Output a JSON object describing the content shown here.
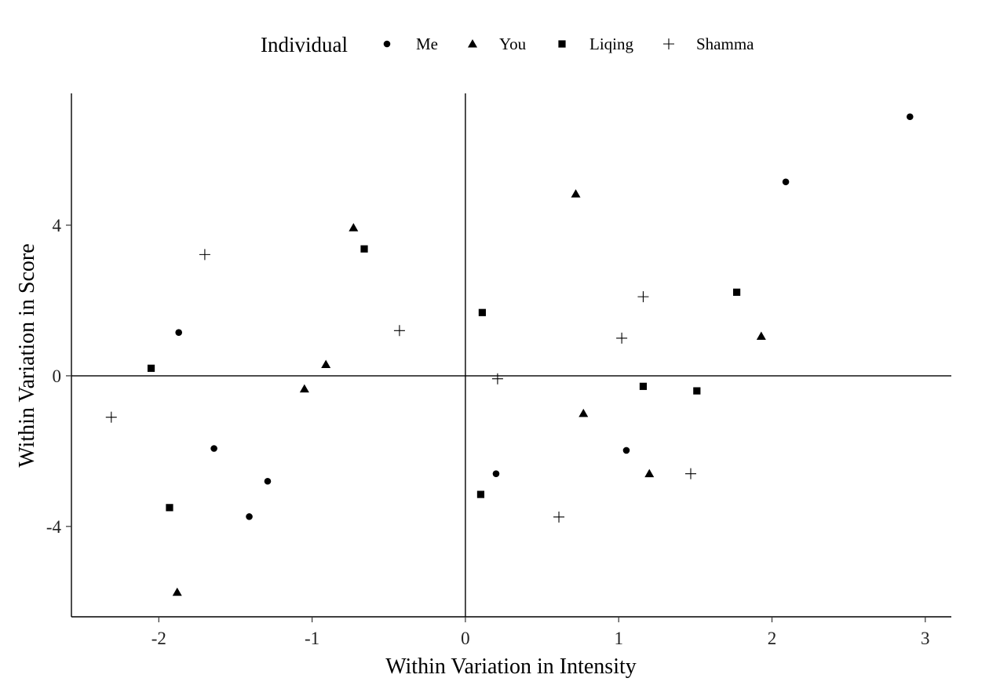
{
  "chart_data": {
    "type": "scatter",
    "title": "",
    "xlabel": "Within Variation in Intensity",
    "ylabel": "Within Variation in Score",
    "xlim": [
      -2.57,
      3.17
    ],
    "ylim": [
      -6.4,
      7.5
    ],
    "xticks": [
      -2,
      -1,
      0,
      1,
      2,
      3
    ],
    "yticks": [
      -4,
      0,
      4
    ],
    "reference_lines": {
      "x": 0,
      "y": 0
    },
    "grid": false,
    "legend": {
      "title": "Individual",
      "position": "top"
    },
    "series": [
      {
        "name": "Me",
        "marker": "circle",
        "x": [
          -1.87,
          -1.64,
          -1.41,
          -1.29,
          0.2,
          1.05,
          2.09,
          2.9
        ],
        "y": [
          1.15,
          -1.93,
          -3.74,
          -2.8,
          -2.6,
          -1.98,
          5.15,
          6.88
        ]
      },
      {
        "name": "You",
        "marker": "triangle",
        "x": [
          -1.88,
          -1.05,
          -0.91,
          -0.73,
          0.72,
          0.77,
          1.2,
          1.93
        ],
        "y": [
          -5.75,
          -0.35,
          0.3,
          3.93,
          4.83,
          -1.0,
          -2.6,
          1.05
        ]
      },
      {
        "name": "Liqing",
        "marker": "square",
        "x": [
          -2.05,
          -1.93,
          -0.66,
          0.1,
          0.11,
          1.16,
          1.51,
          1.77
        ],
        "y": [
          0.2,
          -3.5,
          3.37,
          -3.15,
          1.68,
          -0.28,
          -0.4,
          2.22
        ]
      },
      {
        "name": "Shamma",
        "marker": "plus",
        "x": [
          -2.31,
          -1.7,
          -0.43,
          0.21,
          0.61,
          1.02,
          1.16,
          1.47
        ],
        "y": [
          -1.1,
          3.22,
          1.2,
          -0.08,
          -3.75,
          1.0,
          2.1,
          -2.6
        ]
      }
    ]
  }
}
